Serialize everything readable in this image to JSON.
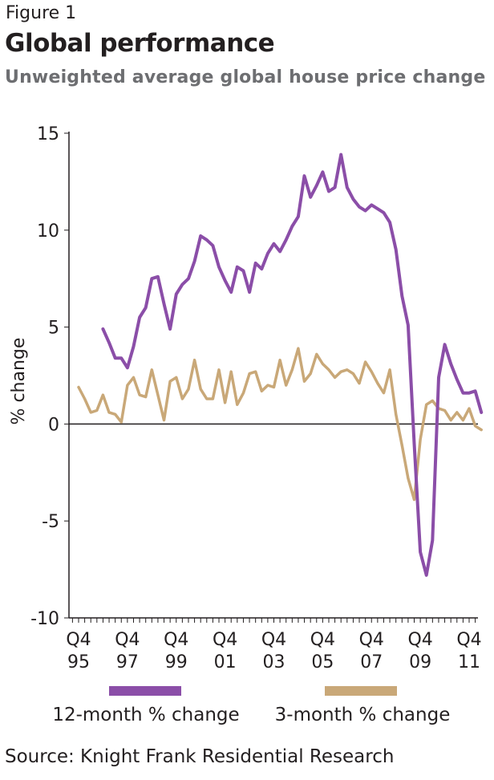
{
  "figure_label": "Figure 1",
  "title": "Global performance",
  "subtitle": "Unweighted average global house price change",
  "source": "Source: Knight Frank Residential Research",
  "colors": {
    "twelve_month": "#8b4ea8",
    "three_month": "#c9a878",
    "axis": "#231f20"
  },
  "chart_data": {
    "type": "line",
    "ylabel": "% change",
    "ylim": [
      -10,
      15
    ],
    "yticks": [
      -10,
      -5,
      0,
      5,
      10,
      15
    ],
    "xlabels": [
      {
        "q": "Q4",
        "y": "95"
      },
      {
        "q": "Q4",
        "y": "97"
      },
      {
        "q": "Q4",
        "y": "99"
      },
      {
        "q": "Q4",
        "y": "01"
      },
      {
        "q": "Q4",
        "y": "03"
      },
      {
        "q": "Q4",
        "y": "05"
      },
      {
        "q": "Q4",
        "y": "07"
      },
      {
        "q": "Q4",
        "y": "09"
      },
      {
        "q": "Q4",
        "y": "11"
      }
    ],
    "x_start": "Q4 1995",
    "x_end": "Q4 2011",
    "series": [
      {
        "name": "12-month % change",
        "start": "Q4 1996",
        "values": [
          4.9,
          4.2,
          3.4,
          3.4,
          2.9,
          4.0,
          5.5,
          6.0,
          7.5,
          7.6,
          6.2,
          4.9,
          6.7,
          7.2,
          7.5,
          8.4,
          9.7,
          9.5,
          9.2,
          8.1,
          7.4,
          6.8,
          8.1,
          7.9,
          6.8,
          8.3,
          8.0,
          8.8,
          9.3,
          8.9,
          9.5,
          10.2,
          10.7,
          12.8,
          11.7,
          12.3,
          13.0,
          12.0,
          12.2,
          13.9,
          12.2,
          11.6,
          11.2,
          11.0,
          11.3,
          11.1,
          10.9,
          10.4,
          9.0,
          6.6,
          5.1,
          -1.0,
          -6.6,
          -7.8,
          -6.0,
          2.4,
          4.1,
          3.1,
          2.3,
          1.6,
          1.6,
          1.7,
          0.6
        ]
      },
      {
        "name": "3-month % change",
        "start": "Q4 1995",
        "values": [
          1.9,
          1.3,
          0.6,
          0.7,
          1.5,
          0.6,
          0.5,
          0.1,
          2.0,
          2.4,
          1.5,
          1.4,
          2.8,
          1.5,
          0.2,
          2.2,
          2.4,
          1.3,
          1.8,
          3.3,
          1.8,
          1.3,
          1.3,
          2.8,
          1.1,
          2.7,
          1.0,
          1.6,
          2.6,
          2.7,
          1.7,
          2.0,
          1.9,
          3.3,
          2.0,
          2.8,
          3.9,
          2.2,
          2.6,
          3.6,
          3.1,
          2.8,
          2.4,
          2.7,
          2.8,
          2.6,
          2.1,
          3.2,
          2.7,
          2.1,
          1.6,
          2.8,
          0.5,
          -1.1,
          -2.8,
          -3.9,
          -0.8,
          1.0,
          1.2,
          0.8,
          0.7,
          0.2,
          0.6,
          0.2,
          0.8,
          -0.1,
          -0.3
        ]
      }
    ],
    "legend_position": "bottom"
  }
}
